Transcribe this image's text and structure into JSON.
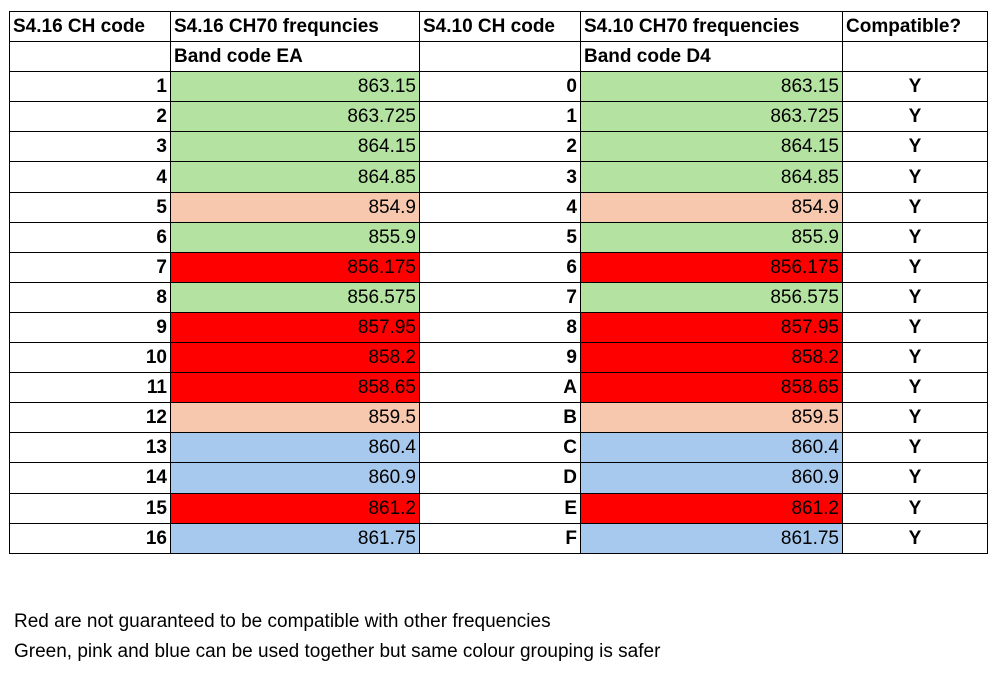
{
  "headers": {
    "col1": "S4.16 CH code",
    "col2": "S4.16 CH70 frequncies",
    "col3": "S4.10 CH code",
    "col4": "S4.10 CH70 frequencies",
    "col5": "Compatible?"
  },
  "subheaders": {
    "col2": "Band code EA",
    "col4": "Band code D4"
  },
  "colors": {
    "green": "#b4e3a1",
    "pink": "#f7c8ae",
    "red": "#ff0000",
    "blue": "#a8c9ee"
  },
  "rows": [
    {
      "s416_code": "1",
      "s416_freq": "863.15",
      "s410_code": "0",
      "s410_freq": "863.15",
      "compatible": "Y",
      "color": "green"
    },
    {
      "s416_code": "2",
      "s416_freq": "863.725",
      "s410_code": "1",
      "s410_freq": "863.725",
      "compatible": "Y",
      "color": "green"
    },
    {
      "s416_code": "3",
      "s416_freq": "864.15",
      "s410_code": "2",
      "s410_freq": "864.15",
      "compatible": "Y",
      "color": "green"
    },
    {
      "s416_code": "4",
      "s416_freq": "864.85",
      "s410_code": "3",
      "s410_freq": "864.85",
      "compatible": "Y",
      "color": "green"
    },
    {
      "s416_code": "5",
      "s416_freq": "854.9",
      "s410_code": "4",
      "s410_freq": "854.9",
      "compatible": "Y",
      "color": "pink"
    },
    {
      "s416_code": "6",
      "s416_freq": "855.9",
      "s410_code": "5",
      "s410_freq": "855.9",
      "compatible": "Y",
      "color": "green"
    },
    {
      "s416_code": "7",
      "s416_freq": "856.175",
      "s410_code": "6",
      "s410_freq": "856.175",
      "compatible": "Y",
      "color": "red"
    },
    {
      "s416_code": "8",
      "s416_freq": "856.575",
      "s410_code": "7",
      "s410_freq": "856.575",
      "compatible": "Y",
      "color": "green"
    },
    {
      "s416_code": "9",
      "s416_freq": "857.95",
      "s410_code": "8",
      "s410_freq": "857.95",
      "compatible": "Y",
      "color": "red"
    },
    {
      "s416_code": "10",
      "s416_freq": "858.2",
      "s410_code": "9",
      "s410_freq": "858.2",
      "compatible": "Y",
      "color": "red"
    },
    {
      "s416_code": "11",
      "s416_freq": "858.65",
      "s410_code": "A",
      "s410_freq": "858.65",
      "compatible": "Y",
      "color": "red"
    },
    {
      "s416_code": "12",
      "s416_freq": "859.5",
      "s410_code": "B",
      "s410_freq": "859.5",
      "compatible": "Y",
      "color": "pink"
    },
    {
      "s416_code": "13",
      "s416_freq": "860.4",
      "s410_code": "C",
      "s410_freq": "860.4",
      "compatible": "Y",
      "color": "blue"
    },
    {
      "s416_code": "14",
      "s416_freq": "860.9",
      "s410_code": "D",
      "s410_freq": "860.9",
      "compatible": "Y",
      "color": "blue"
    },
    {
      "s416_code": "15",
      "s416_freq": "861.2",
      "s410_code": "E",
      "s410_freq": "861.2",
      "compatible": "Y",
      "color": "red"
    },
    {
      "s416_code": "16",
      "s416_freq": "861.75",
      "s410_code": "F",
      "s410_freq": "861.75",
      "compatible": "Y",
      "color": "blue"
    }
  ],
  "notes": [
    "Red are not guaranteed to be compatible with other frequencies",
    "Green, pink and blue can be used together but same colour grouping is safer"
  ]
}
